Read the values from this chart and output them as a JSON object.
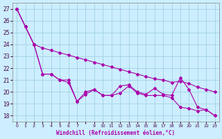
{
  "title": "",
  "xlabel": "Windchill (Refroidissement éolien,°C)",
  "background_color": "#cceeff",
  "line_color": "#aa00aa",
  "grid_color": "#99ccdd",
  "ylim": [
    17.5,
    27.5
  ],
  "xlim": [
    -0.5,
    23.5
  ],
  "yticks": [
    18,
    19,
    20,
    21,
    22,
    23,
    24,
    25,
    26,
    27
  ],
  "x_tick_labels": [
    "0",
    "1",
    "2",
    "3",
    "4",
    "5",
    "6",
    "7",
    "",
    "9",
    "10",
    "11",
    "12",
    "13",
    "14",
    "15",
    "16",
    "17",
    "18",
    "19",
    "20",
    "21",
    "22",
    "23"
  ],
  "line1": [
    27.0,
    25.5,
    24.0,
    23.7,
    23.5,
    23.3,
    23.1,
    22.9,
    22.7,
    22.5,
    22.3,
    22.1,
    21.9,
    21.7,
    21.5,
    21.3,
    21.1,
    21.0,
    20.8,
    20.9,
    20.7,
    20.4,
    20.2,
    20.0
  ],
  "line2": [
    27.0,
    25.5,
    24.0,
    21.5,
    21.5,
    21.0,
    21.0,
    19.2,
    20.0,
    20.2,
    19.7,
    19.7,
    20.5,
    20.6,
    20.0,
    19.8,
    20.3,
    19.8,
    19.7,
    21.2,
    20.2,
    18.7,
    18.5,
    18.0
  ],
  "line3": [
    27.0,
    25.5,
    24.0,
    21.5,
    21.5,
    21.0,
    20.8,
    19.2,
    19.8,
    20.2,
    19.7,
    19.7,
    19.9,
    20.5,
    19.9,
    19.7,
    19.7,
    19.7,
    19.5,
    18.7,
    18.6,
    18.4,
    18.5,
    18.0
  ]
}
